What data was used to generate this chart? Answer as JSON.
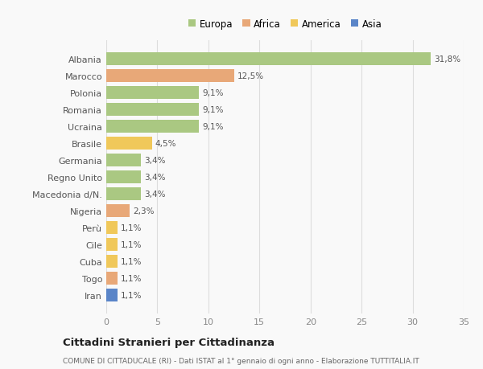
{
  "countries": [
    "Albania",
    "Marocco",
    "Polonia",
    "Romania",
    "Ucraina",
    "Brasile",
    "Germania",
    "Regno Unito",
    "Macedonia d/N.",
    "Nigeria",
    "Perù",
    "Cile",
    "Cuba",
    "Togo",
    "Iran"
  ],
  "values": [
    31.8,
    12.5,
    9.1,
    9.1,
    9.1,
    4.5,
    3.4,
    3.4,
    3.4,
    2.3,
    1.1,
    1.1,
    1.1,
    1.1,
    1.1
  ],
  "labels": [
    "31,8%",
    "12,5%",
    "9,1%",
    "9,1%",
    "9,1%",
    "4,5%",
    "3,4%",
    "3,4%",
    "3,4%",
    "2,3%",
    "1,1%",
    "1,1%",
    "1,1%",
    "1,1%",
    "1,1%"
  ],
  "continents": [
    "Europa",
    "Africa",
    "Europa",
    "Europa",
    "Europa",
    "America",
    "Europa",
    "Europa",
    "Europa",
    "Africa",
    "America",
    "America",
    "America",
    "Africa",
    "Asia"
  ],
  "continent_colors": {
    "Europa": "#aac882",
    "Africa": "#e8a878",
    "America": "#f0c85a",
    "Asia": "#5a85c8"
  },
  "legend_order": [
    "Europa",
    "Africa",
    "America",
    "Asia"
  ],
  "title": "Cittadini Stranieri per Cittadinanza",
  "subtitle": "COMUNE DI CITTADUCALE (RI) - Dati ISTAT al 1° gennaio di ogni anno - Elaborazione TUTTITALIA.IT",
  "xlim": [
    0,
    35
  ],
  "xticks": [
    0,
    5,
    10,
    15,
    20,
    25,
    30,
    35
  ],
  "background_color": "#f9f9f9",
  "grid_color": "#dddddd",
  "bar_height": 0.75
}
